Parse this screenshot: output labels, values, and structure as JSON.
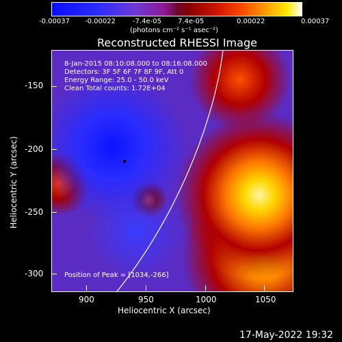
{
  "colorbar": {
    "ticks": [
      "-0.00037",
      "-0.00022",
      "-7.4e-05",
      "7.4e-05",
      "0.00022",
      "0.00037"
    ],
    "unit": "(photons cm⁻² s⁻¹ asec⁻²)"
  },
  "plot": {
    "title": "Reconstructed RHESSI Image",
    "info_lines": [
      "8-Jan-2015 08:10:08.000 to 08:16:08.000",
      "Detectors: 3F 5F 6F 7F 8F 9F, Att 0",
      "Energy Range: 25.0 - 50.0 keV",
      "Clean     Total counts: 1.72E+04"
    ],
    "peak_label": "Position of Peak = [1034,-266]",
    "x_axis": {
      "label": "Heliocentric X (arcsec)",
      "ticks": [
        "900",
        "950",
        "1000",
        "1050"
      ]
    },
    "y_axis": {
      "label": "Heliocentric Y (arcsec)",
      "ticks": [
        "-150",
        "-200",
        "-250",
        "-300"
      ]
    }
  },
  "timestamp": "17-May-2022 19:32"
}
